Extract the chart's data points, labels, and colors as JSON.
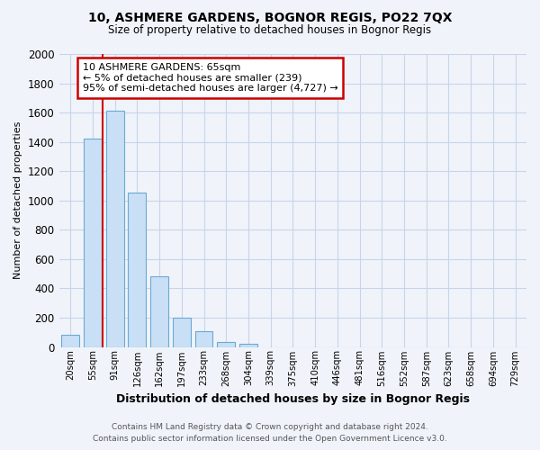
{
  "title1": "10, ASHMERE GARDENS, BOGNOR REGIS, PO22 7QX",
  "title2": "Size of property relative to detached houses in Bognor Regis",
  "xlabel": "Distribution of detached houses by size in Bognor Regis",
  "ylabel": "Number of detached properties",
  "footer1": "Contains HM Land Registry data © Crown copyright and database right 2024.",
  "footer2": "Contains public sector information licensed under the Open Government Licence v3.0.",
  "categories": [
    "20sqm",
    "55sqm",
    "91sqm",
    "126sqm",
    "162sqm",
    "197sqm",
    "233sqm",
    "268sqm",
    "304sqm",
    "339sqm",
    "375sqm",
    "410sqm",
    "446sqm",
    "481sqm",
    "516sqm",
    "552sqm",
    "587sqm",
    "623sqm",
    "658sqm",
    "694sqm",
    "729sqm"
  ],
  "values": [
    85,
    1420,
    1610,
    1055,
    480,
    200,
    105,
    35,
    20,
    0,
    0,
    0,
    0,
    0,
    0,
    0,
    0,
    0,
    0,
    0,
    0
  ],
  "bar_color": "#c8dff5",
  "bar_edge_color": "#6aaad4",
  "grid_color": "#c8d4e8",
  "background_color": "#f0f4fa",
  "red_line_x": 1.45,
  "annotation_text": "10 ASHMERE GARDENS: 65sqm\n← 5% of detached houses are smaller (239)\n95% of semi-detached houses are larger (4,727) →",
  "annotation_box_color": "#ffffff",
  "annotation_box_edge": "#cc0000",
  "ylim": [
    0,
    2000
  ],
  "yticks": [
    0,
    200,
    400,
    600,
    800,
    1000,
    1200,
    1400,
    1600,
    1800,
    2000
  ]
}
